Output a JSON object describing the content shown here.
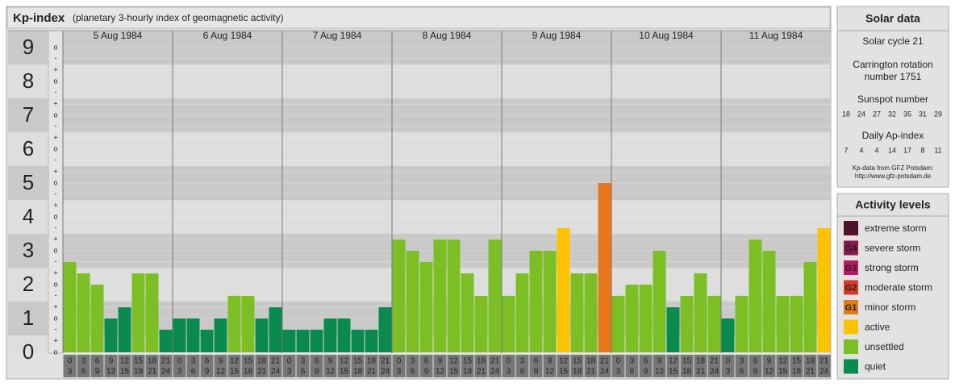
{
  "chart_data": {
    "type": "bar",
    "title": "Kp-index",
    "subtitle": "(planetary 3-hourly index of geomagnetic activity)",
    "hour_labels": [
      [
        "0",
        "3"
      ],
      [
        "3",
        "6"
      ],
      [
        "6",
        "9"
      ],
      [
        "9",
        "12"
      ],
      [
        "12",
        "15"
      ],
      [
        "15",
        "18"
      ],
      [
        "18",
        "21"
      ],
      [
        "21",
        "24"
      ]
    ],
    "series": [
      {
        "name": "5 Aug 1984",
        "values": [
          2.67,
          2.33,
          2,
          1,
          1.33,
          2.33,
          2.33,
          0.67
        ],
        "colors": [
          "#7cbf24",
          "#7cbf24",
          "#7cbf24",
          "#0a8a4e",
          "#0a8a4e",
          "#7cbf24",
          "#7cbf24",
          "#0a8a4e"
        ]
      },
      {
        "name": "6 Aug 1984",
        "values": [
          1,
          1,
          0.67,
          1,
          1.67,
          1.67,
          1,
          1.33
        ],
        "colors": [
          "#0a8a4e",
          "#0a8a4e",
          "#0a8a4e",
          "#0a8a4e",
          "#7cbf24",
          "#7cbf24",
          "#0a8a4e",
          "#0a8a4e"
        ]
      },
      {
        "name": "7 Aug 1984",
        "values": [
          0.67,
          0.67,
          0.67,
          1,
          1,
          0.67,
          0.67,
          1.33
        ],
        "colors": [
          "#0a8a4e",
          "#0a8a4e",
          "#0a8a4e",
          "#0a8a4e",
          "#0a8a4e",
          "#0a8a4e",
          "#0a8a4e",
          "#0a8a4e"
        ]
      },
      {
        "name": "8 Aug 1984",
        "values": [
          3.33,
          3,
          2.67,
          3.33,
          3.33,
          2.33,
          1.67,
          3.33
        ],
        "colors": [
          "#7cbf24",
          "#7cbf24",
          "#7cbf24",
          "#7cbf24",
          "#7cbf24",
          "#7cbf24",
          "#7cbf24",
          "#7cbf24"
        ]
      },
      {
        "name": "9 Aug 1984",
        "values": [
          1.67,
          2.33,
          3,
          3,
          3.67,
          2.33,
          2.33,
          5
        ],
        "colors": [
          "#7cbf24",
          "#7cbf24",
          "#7cbf24",
          "#7cbf24",
          "#fdc300",
          "#7cbf24",
          "#7cbf24",
          "#e8771c"
        ]
      },
      {
        "name": "10 Aug 1984",
        "values": [
          1.67,
          2,
          2,
          3,
          1.33,
          1.67,
          2.33,
          1.67
        ],
        "colors": [
          "#7cbf24",
          "#7cbf24",
          "#7cbf24",
          "#7cbf24",
          "#0a8a4e",
          "#7cbf24",
          "#7cbf24",
          "#7cbf24"
        ]
      },
      {
        "name": "11 Aug 1984",
        "values": [
          1,
          1.67,
          3.33,
          3,
          1.67,
          1.67,
          2.67,
          3.67
        ],
        "colors": [
          "#0a8a4e",
          "#7cbf24",
          "#7cbf24",
          "#7cbf24",
          "#7cbf24",
          "#7cbf24",
          "#7cbf24",
          "#fdc300"
        ]
      }
    ],
    "ylim": [
      -0.5,
      9.5
    ],
    "yticks": [
      0,
      1,
      2,
      3,
      4,
      5,
      6,
      7,
      8,
      9
    ],
    "yminorticks": [
      {
        "value": 0,
        "label": "o"
      },
      {
        "value": 0.33,
        "label": "+"
      },
      {
        "value": 0.67,
        "label": "-"
      },
      {
        "value": 1,
        "label": "o"
      },
      {
        "value": 1.33,
        "label": "+"
      },
      {
        "value": 1.67,
        "label": "-"
      },
      {
        "value": 2,
        "label": "o"
      },
      {
        "value": 2.33,
        "label": "+"
      },
      {
        "value": 2.67,
        "label": "-"
      },
      {
        "value": 3,
        "label": "o"
      },
      {
        "value": 3.33,
        "label": "+"
      },
      {
        "value": 3.67,
        "label": "-"
      },
      {
        "value": 4,
        "label": "o"
      },
      {
        "value": 4.33,
        "label": "+"
      },
      {
        "value": 4.67,
        "label": "-"
      },
      {
        "value": 5,
        "label": "o"
      },
      {
        "value": 5.33,
        "label": "+"
      },
      {
        "value": 5.67,
        "label": "-"
      },
      {
        "value": 6,
        "label": "o"
      },
      {
        "value": 6.33,
        "label": "+"
      },
      {
        "value": 6.67,
        "label": "-"
      },
      {
        "value": 7,
        "label": "o"
      },
      {
        "value": 7.33,
        "label": "+"
      },
      {
        "value": 7.67,
        "label": "-"
      },
      {
        "value": 8,
        "label": "o"
      },
      {
        "value": 8.33,
        "label": "+"
      },
      {
        "value": 8.67,
        "label": "-"
      },
      {
        "value": 9,
        "label": "o"
      }
    ],
    "legend_title": "Activity levels",
    "legend": [
      {
        "code": "G5",
        "name": "extreme storm",
        "color": "#5a0c2e"
      },
      {
        "code": "G4",
        "name": "severe storm",
        "color": "#8a1a4e"
      },
      {
        "code": "G3",
        "name": "strong storm",
        "color": "#b8185f"
      },
      {
        "code": "G2",
        "name": "moderate storm",
        "color": "#d83a2a"
      },
      {
        "code": "G1",
        "name": "minor storm",
        "color": "#e07b1a"
      },
      {
        "name": "active",
        "color": "#fdc300"
      },
      {
        "name": "unsettled",
        "color": "#7cbf24"
      },
      {
        "name": "quiet",
        "color": "#0a8a4e"
      }
    ]
  },
  "solar_data": {
    "title": "Solar data",
    "cycle": "Solar cycle 21",
    "carrington": [
      "Carrington rotation",
      "number 1751"
    ],
    "sunspot_title": "Sunspot number",
    "sunspot_numbers": [
      "18",
      "24",
      "27",
      "32",
      "35",
      "31",
      "29"
    ],
    "ap_title": "Daily Ap-index",
    "ap_values": [
      "7",
      "4",
      "4",
      "14",
      "17",
      "8",
      "11"
    ],
    "source": "Kp-data from GFZ Potsdam:",
    "url": "http://www.gfz-potsdam.de"
  }
}
